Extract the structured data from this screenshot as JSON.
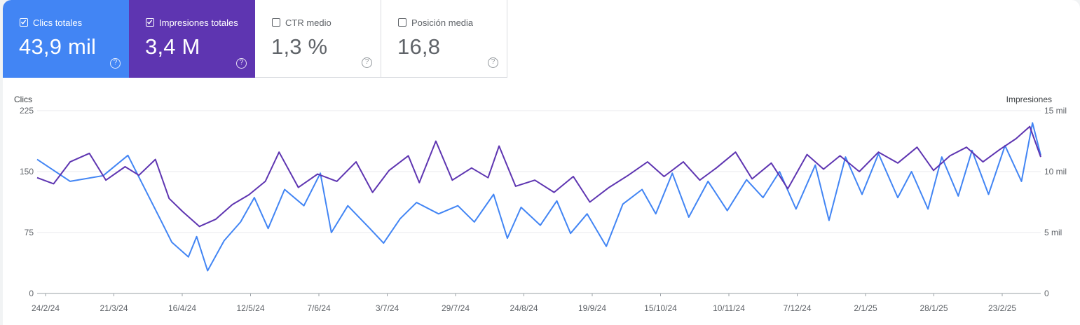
{
  "metrics": [
    {
      "label": "Clics totales",
      "value": "43,9 mil",
      "checked": true,
      "color": "#4285f4"
    },
    {
      "label": "Impresiones totales",
      "value": "3,4 M",
      "checked": true,
      "color": "#5e35b1"
    },
    {
      "label": "CTR medio",
      "value": "1,3 %",
      "checked": false
    },
    {
      "label": "Posición media",
      "value": "16,8",
      "checked": false
    }
  ],
  "help_glyph": "?",
  "chart_data": {
    "type": "line",
    "y_left": {
      "label": "Clics",
      "ticks": [
        "0",
        "75",
        "150",
        "225"
      ],
      "range": [
        0,
        225
      ]
    },
    "y_right": {
      "label": "Impresiones",
      "ticks": [
        "0",
        "5 mil",
        "10 mil",
        "15 mil"
      ],
      "range": [
        0,
        15000
      ]
    },
    "x_range": [
      "2024-02-24",
      "2025-02-23"
    ],
    "x_ticks": [
      "24/2/24",
      "21/3/24",
      "16/4/24",
      "12/5/24",
      "7/6/24",
      "3/7/24",
      "29/7/24",
      "24/8/24",
      "19/9/24",
      "15/10/24",
      "10/11/24",
      "7/12/24",
      "2/1/25",
      "28/1/25",
      "23/2/25"
    ],
    "grid": true,
    "series": [
      {
        "name": "Clics totales",
        "axis": "left",
        "color": "#4285f4",
        "points": [
          [
            "2024-02-24",
            165
          ],
          [
            "2024-03-07",
            138
          ],
          [
            "2024-03-19",
            145
          ],
          [
            "2024-03-28",
            170
          ],
          [
            "2024-04-03",
            130
          ],
          [
            "2024-04-09",
            90
          ],
          [
            "2024-04-13",
            63
          ],
          [
            "2024-04-19",
            45
          ],
          [
            "2024-04-22",
            70
          ],
          [
            "2024-04-26",
            28
          ],
          [
            "2024-05-02",
            65
          ],
          [
            "2024-05-08",
            88
          ],
          [
            "2024-05-13",
            118
          ],
          [
            "2024-05-18",
            80
          ],
          [
            "2024-05-24",
            128
          ],
          [
            "2024-05-31",
            108
          ],
          [
            "2024-06-06",
            148
          ],
          [
            "2024-06-10",
            75
          ],
          [
            "2024-06-16",
            108
          ],
          [
            "2024-06-24",
            80
          ],
          [
            "2024-06-29",
            62
          ],
          [
            "2024-07-05",
            92
          ],
          [
            "2024-07-11",
            112
          ],
          [
            "2024-07-19",
            98
          ],
          [
            "2024-07-26",
            108
          ],
          [
            "2024-08-01",
            88
          ],
          [
            "2024-08-08",
            122
          ],
          [
            "2024-08-13",
            68
          ],
          [
            "2024-08-18",
            106
          ],
          [
            "2024-08-25",
            84
          ],
          [
            "2024-08-31",
            114
          ],
          [
            "2024-09-05",
            74
          ],
          [
            "2024-09-11",
            98
          ],
          [
            "2024-09-18",
            58
          ],
          [
            "2024-09-24",
            110
          ],
          [
            "2024-10-01",
            128
          ],
          [
            "2024-10-06",
            98
          ],
          [
            "2024-10-12",
            148
          ],
          [
            "2024-10-18",
            94
          ],
          [
            "2024-10-25",
            138
          ],
          [
            "2024-11-01",
            102
          ],
          [
            "2024-11-08",
            140
          ],
          [
            "2024-11-14",
            118
          ],
          [
            "2024-11-20",
            150
          ],
          [
            "2024-11-26",
            104
          ],
          [
            "2024-12-03",
            158
          ],
          [
            "2024-12-08",
            90
          ],
          [
            "2024-12-14",
            168
          ],
          [
            "2024-12-20",
            122
          ],
          [
            "2024-12-26",
            172
          ],
          [
            "2025-01-02",
            118
          ],
          [
            "2025-01-07",
            150
          ],
          [
            "2025-01-13",
            104
          ],
          [
            "2025-01-18",
            168
          ],
          [
            "2025-01-24",
            120
          ],
          [
            "2025-01-29",
            176
          ],
          [
            "2025-02-04",
            122
          ],
          [
            "2025-02-10",
            182
          ],
          [
            "2025-02-16",
            138
          ],
          [
            "2025-02-20",
            210
          ],
          [
            "2025-02-23",
            170
          ]
        ]
      },
      {
        "name": "Impresiones totales",
        "axis": "right",
        "color": "#5e35b1",
        "points": [
          [
            "2024-02-24",
            9500
          ],
          [
            "2024-03-01",
            9000
          ],
          [
            "2024-03-07",
            10800
          ],
          [
            "2024-03-14",
            11500
          ],
          [
            "2024-03-20",
            9300
          ],
          [
            "2024-03-27",
            10400
          ],
          [
            "2024-04-01",
            9700
          ],
          [
            "2024-04-07",
            11000
          ],
          [
            "2024-04-12",
            7800
          ],
          [
            "2024-04-17",
            6700
          ],
          [
            "2024-04-23",
            5500
          ],
          [
            "2024-04-29",
            6100
          ],
          [
            "2024-05-05",
            7300
          ],
          [
            "2024-05-11",
            8100
          ],
          [
            "2024-05-17",
            9200
          ],
          [
            "2024-05-22",
            11600
          ],
          [
            "2024-05-29",
            8700
          ],
          [
            "2024-06-05",
            9800
          ],
          [
            "2024-06-12",
            9200
          ],
          [
            "2024-06-19",
            10800
          ],
          [
            "2024-06-25",
            8300
          ],
          [
            "2024-07-01",
            10100
          ],
          [
            "2024-07-08",
            11300
          ],
          [
            "2024-07-12",
            9100
          ],
          [
            "2024-07-18",
            12500
          ],
          [
            "2024-07-24",
            9300
          ],
          [
            "2024-07-31",
            10300
          ],
          [
            "2024-08-06",
            9500
          ],
          [
            "2024-08-10",
            12100
          ],
          [
            "2024-08-16",
            8800
          ],
          [
            "2024-08-23",
            9300
          ],
          [
            "2024-08-30",
            8300
          ],
          [
            "2024-09-06",
            9600
          ],
          [
            "2024-09-12",
            7500
          ],
          [
            "2024-09-19",
            8700
          ],
          [
            "2024-09-26",
            9700
          ],
          [
            "2024-10-03",
            10800
          ],
          [
            "2024-10-09",
            9600
          ],
          [
            "2024-10-16",
            10800
          ],
          [
            "2024-10-22",
            9300
          ],
          [
            "2024-10-28",
            10300
          ],
          [
            "2024-11-04",
            11600
          ],
          [
            "2024-11-10",
            9400
          ],
          [
            "2024-11-17",
            10700
          ],
          [
            "2024-11-23",
            8600
          ],
          [
            "2024-11-30",
            11400
          ],
          [
            "2024-12-06",
            10200
          ],
          [
            "2024-12-12",
            11300
          ],
          [
            "2024-12-19",
            10000
          ],
          [
            "2024-12-26",
            11600
          ],
          [
            "2025-01-02",
            10700
          ],
          [
            "2025-01-09",
            12000
          ],
          [
            "2025-01-15",
            10100
          ],
          [
            "2025-01-21",
            11300
          ],
          [
            "2025-01-27",
            12000
          ],
          [
            "2025-02-02",
            10800
          ],
          [
            "2025-02-08",
            11800
          ],
          [
            "2025-02-14",
            12700
          ],
          [
            "2025-02-19",
            13700
          ],
          [
            "2025-02-23",
            11200
          ]
        ]
      }
    ]
  }
}
